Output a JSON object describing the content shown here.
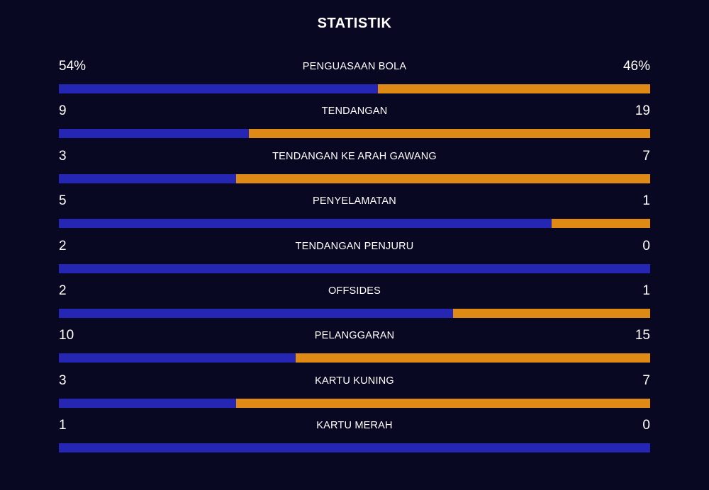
{
  "title": "STATISTIK",
  "colors": {
    "background": "#080822",
    "home": "#2626b5",
    "away": "#e08a16"
  },
  "stats": [
    {
      "label": "PENGUASAAN BOLA",
      "home": "54%",
      "away": "46%",
      "home_share": 0.54
    },
    {
      "label": "TENDANGAN",
      "home": "9",
      "away": "19",
      "home_share": 0.321
    },
    {
      "label": "TENDANGAN KE ARAH GAWANG",
      "home": "3",
      "away": "7",
      "home_share": 0.3
    },
    {
      "label": "PENYELAMATAN",
      "home": "5",
      "away": "1",
      "home_share": 0.833
    },
    {
      "label": "TENDANGAN PENJURU",
      "home": "2",
      "away": "0",
      "home_share": 1.0
    },
    {
      "label": "OFFSIDES",
      "home": "2",
      "away": "1",
      "home_share": 0.667
    },
    {
      "label": "PELANGGARAN",
      "home": "10",
      "away": "15",
      "home_share": 0.4
    },
    {
      "label": "KARTU KUNING",
      "home": "3",
      "away": "7",
      "home_share": 0.3
    },
    {
      "label": "KARTU MERAH",
      "home": "1",
      "away": "0",
      "home_share": 1.0
    }
  ]
}
